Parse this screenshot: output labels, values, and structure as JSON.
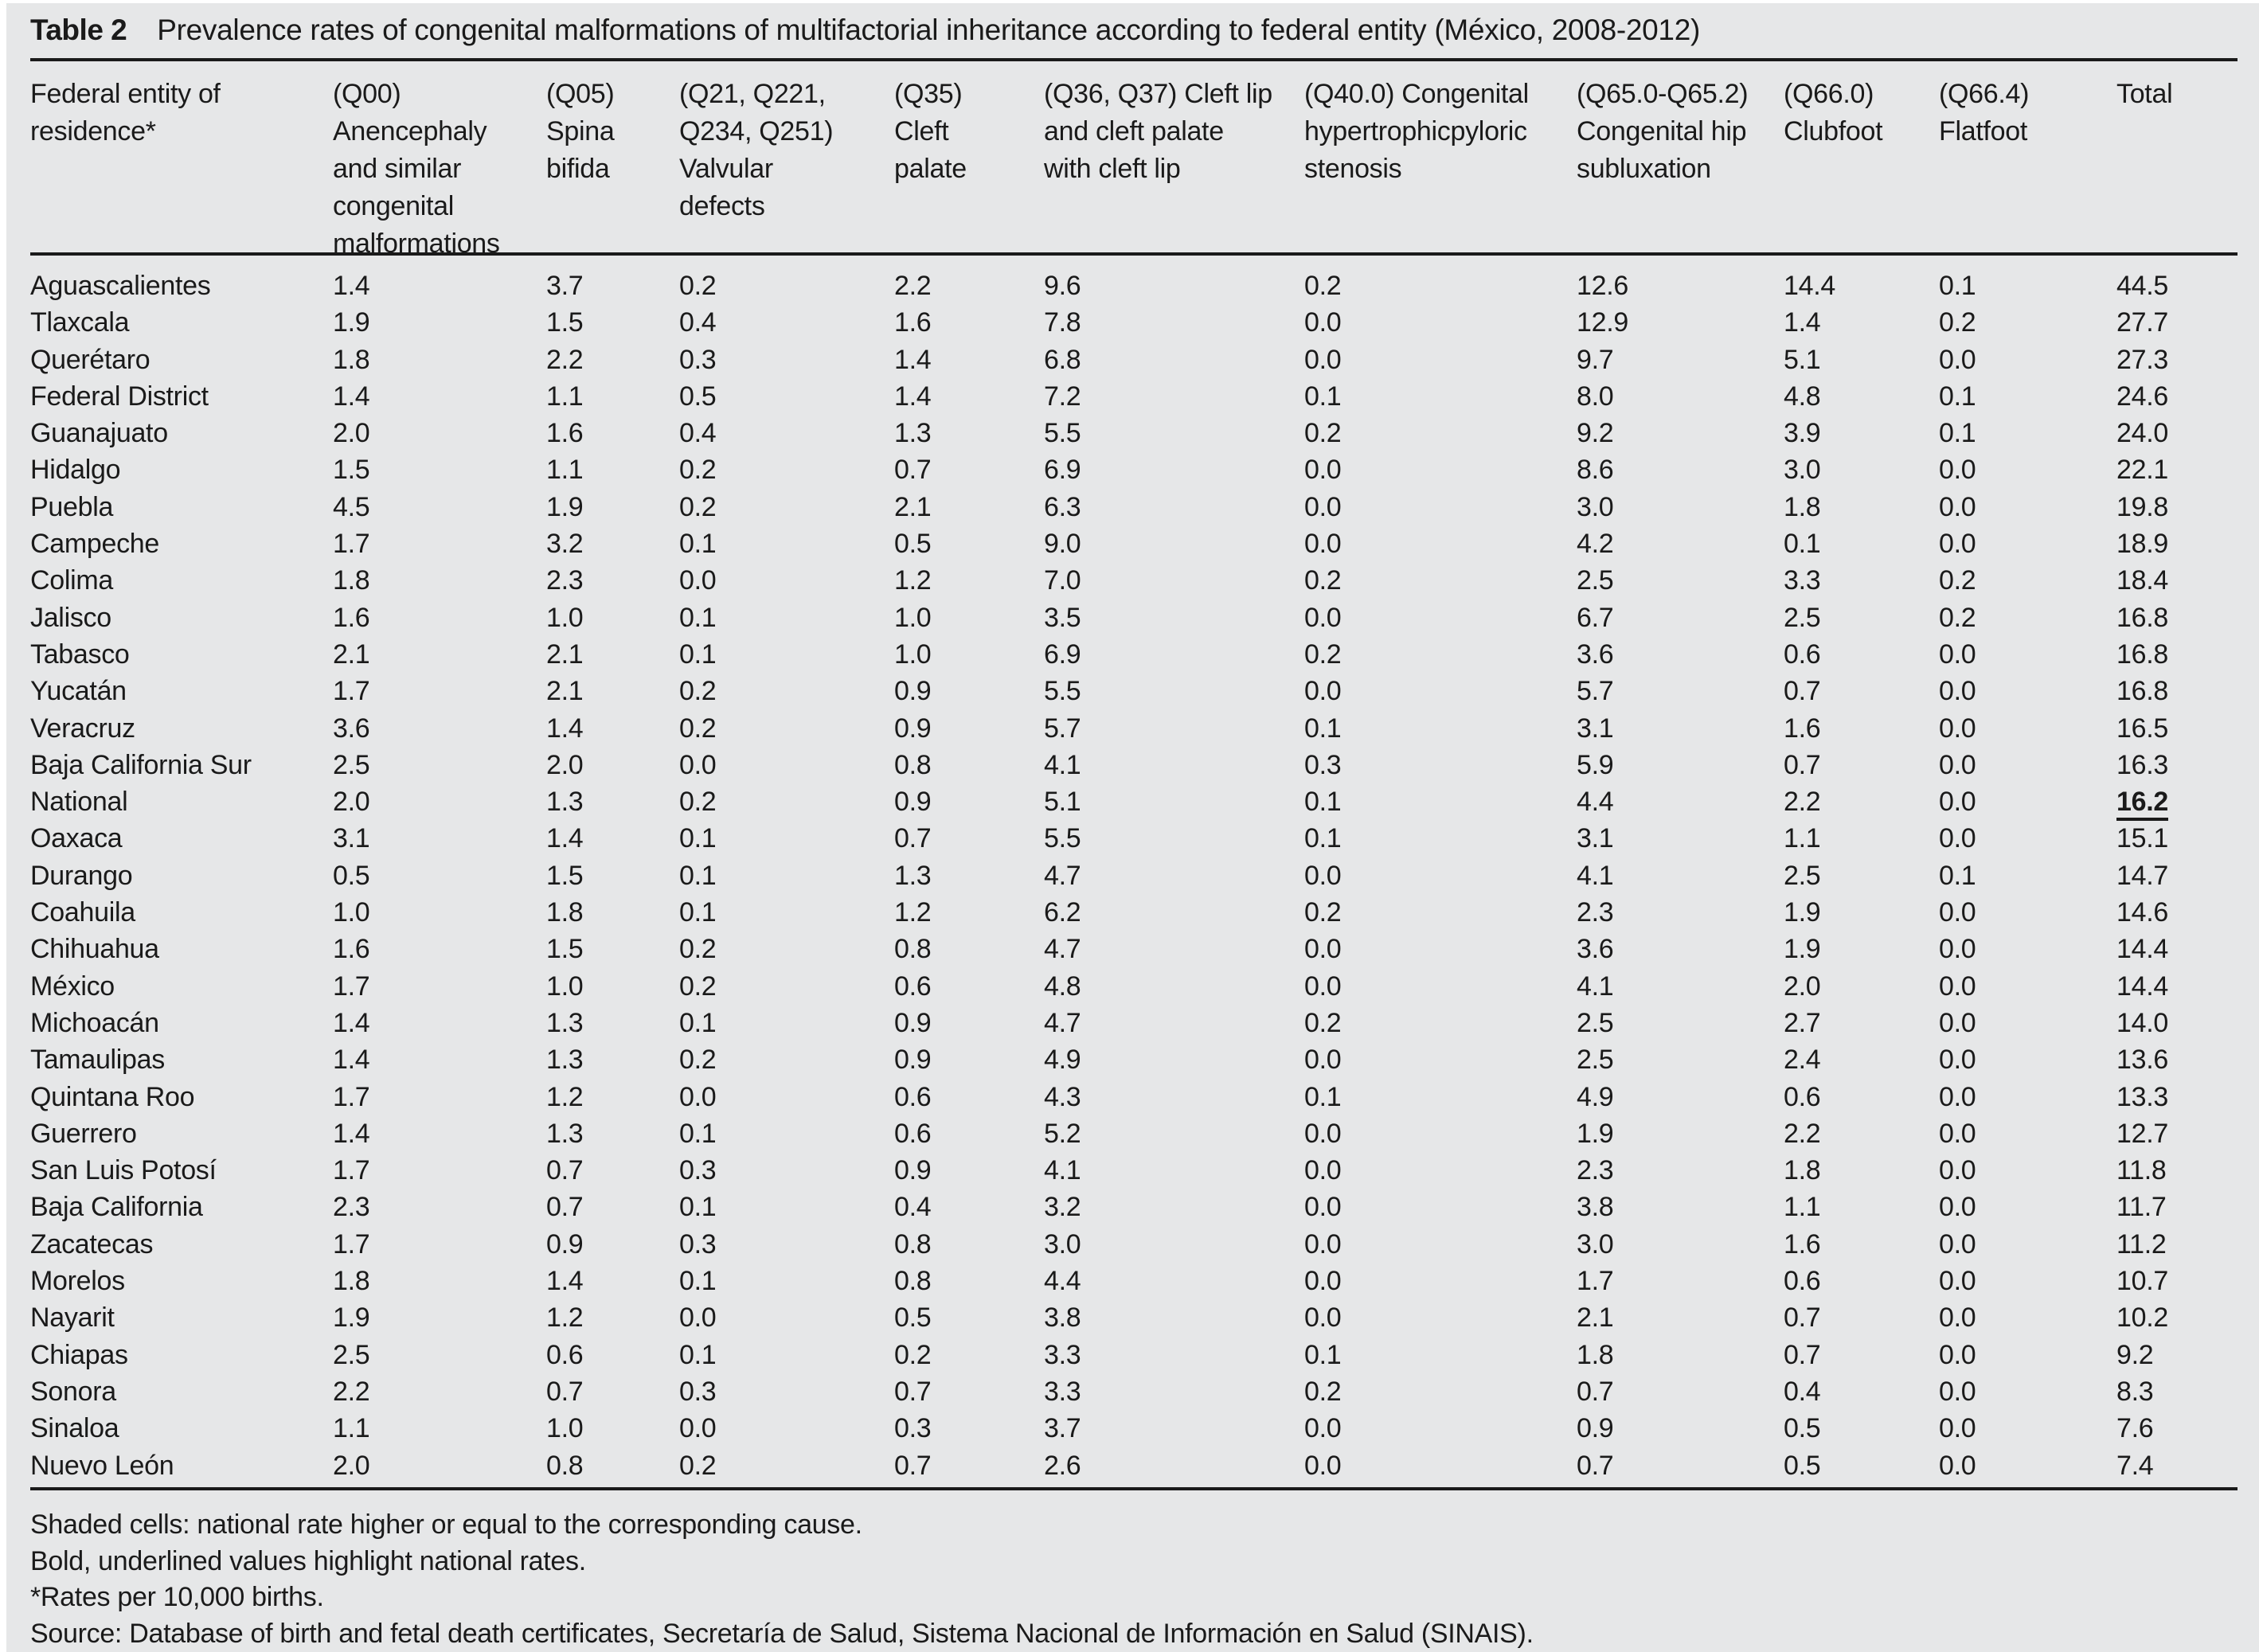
{
  "colors": {
    "panel_bg": "#e6e7e8",
    "text": "#1a1a1a",
    "rule": "#1a1a1a",
    "page_bg": "#ffffff"
  },
  "table": {
    "title_label": "Table 2",
    "title_text": "Prevalence rates of congenital malformations of multifactorial inheritance according to federal entity (México, 2008-2012)",
    "columns": [
      {
        "id": "entity",
        "lines": [
          "Federal entity of",
          "residence*"
        ]
      },
      {
        "id": "q00",
        "lines": [
          "(Q00)",
          "Anencephaly",
          "and similar",
          "congenital",
          "malformations"
        ]
      },
      {
        "id": "q05",
        "lines": [
          "(Q05)",
          "Spina",
          "bifida"
        ]
      },
      {
        "id": "q21",
        "lines": [
          "(Q21, Q221,",
          "Q234, Q251)",
          "Valvular",
          "defects"
        ]
      },
      {
        "id": "q35",
        "lines": [
          "(Q35)",
          "Cleft",
          "palate"
        ]
      },
      {
        "id": "q36_q37",
        "lines": [
          "(Q36, Q37) Cleft lip",
          "and cleft palate",
          "with cleft lip"
        ]
      },
      {
        "id": "q40",
        "lines": [
          "(Q40.0) Congenital",
          "hypertrophicpyloric",
          "stenosis"
        ]
      },
      {
        "id": "q65",
        "lines": [
          "(Q65.0-Q65.2)",
          "Congenital hip",
          "subluxation"
        ]
      },
      {
        "id": "q66_0",
        "lines": [
          "(Q66.0)",
          "Clubfoot"
        ]
      },
      {
        "id": "q66_4",
        "lines": [
          "(Q66.4)",
          "Flatfoot"
        ]
      },
      {
        "id": "total",
        "lines": [
          "Total"
        ]
      }
    ],
    "rows": [
      {
        "entity": "Aguascalientes",
        "values": [
          "1.4",
          "3.7",
          "0.2",
          "2.2",
          "9.6",
          "0.2",
          "12.6",
          "14.4",
          "0.1",
          "44.5"
        ]
      },
      {
        "entity": "Tlaxcala",
        "values": [
          "1.9",
          "1.5",
          "0.4",
          "1.6",
          "7.8",
          "0.0",
          "12.9",
          "1.4",
          "0.2",
          "27.7"
        ]
      },
      {
        "entity": "Querétaro",
        "values": [
          "1.8",
          "2.2",
          "0.3",
          "1.4",
          "6.8",
          "0.0",
          "9.7",
          "5.1",
          "0.0",
          "27.3"
        ]
      },
      {
        "entity": "Federal District",
        "values": [
          "1.4",
          "1.1",
          "0.5",
          "1.4",
          "7.2",
          "0.1",
          "8.0",
          "4.8",
          "0.1",
          "24.6"
        ]
      },
      {
        "entity": "Guanajuato",
        "values": [
          "2.0",
          "1.6",
          "0.4",
          "1.3",
          "5.5",
          "0.2",
          "9.2",
          "3.9",
          "0.1",
          "24.0"
        ]
      },
      {
        "entity": "Hidalgo",
        "values": [
          "1.5",
          "1.1",
          "0.2",
          "0.7",
          "6.9",
          "0.0",
          "8.6",
          "3.0",
          "0.0",
          "22.1"
        ]
      },
      {
        "entity": "Puebla",
        "values": [
          "4.5",
          "1.9",
          "0.2",
          "2.1",
          "6.3",
          "0.0",
          "3.0",
          "1.8",
          "0.0",
          "19.8"
        ]
      },
      {
        "entity": "Campeche",
        "values": [
          "1.7",
          "3.2",
          "0.1",
          "0.5",
          "9.0",
          "0.0",
          "4.2",
          "0.1",
          "0.0",
          "18.9"
        ]
      },
      {
        "entity": "Colima",
        "values": [
          "1.8",
          "2.3",
          "0.0",
          "1.2",
          "7.0",
          "0.2",
          "2.5",
          "3.3",
          "0.2",
          "18.4"
        ]
      },
      {
        "entity": "Jalisco",
        "values": [
          "1.6",
          "1.0",
          "0.1",
          "1.0",
          "3.5",
          "0.0",
          "6.7",
          "2.5",
          "0.2",
          "16.8"
        ]
      },
      {
        "entity": "Tabasco",
        "values": [
          "2.1",
          "2.1",
          "0.1",
          "1.0",
          "6.9",
          "0.2",
          "3.6",
          "0.6",
          "0.0",
          "16.8"
        ]
      },
      {
        "entity": "Yucatán",
        "values": [
          "1.7",
          "2.1",
          "0.2",
          "0.9",
          "5.5",
          "0.0",
          "5.7",
          "0.7",
          "0.0",
          "16.8"
        ]
      },
      {
        "entity": "Veracruz",
        "values": [
          "3.6",
          "1.4",
          "0.2",
          "0.9",
          "5.7",
          "0.1",
          "3.1",
          "1.6",
          "0.0",
          "16.5"
        ]
      },
      {
        "entity": "Baja California Sur",
        "values": [
          "2.5",
          "2.0",
          "0.0",
          "0.8",
          "4.1",
          "0.3",
          "5.9",
          "0.7",
          "0.0",
          "16.3"
        ]
      },
      {
        "entity": "National",
        "values": [
          "2.0",
          "1.3",
          "0.2",
          "0.9",
          "5.1",
          "0.1",
          "4.4",
          "2.2",
          "0.0",
          "16.2"
        ],
        "highlight_total": true
      },
      {
        "entity": "Oaxaca",
        "values": [
          "3.1",
          "1.4",
          "0.1",
          "0.7",
          "5.5",
          "0.1",
          "3.1",
          "1.1",
          "0.0",
          "15.1"
        ]
      },
      {
        "entity": "Durango",
        "values": [
          "0.5",
          "1.5",
          "0.1",
          "1.3",
          "4.7",
          "0.0",
          "4.1",
          "2.5",
          "0.1",
          "14.7"
        ]
      },
      {
        "entity": "Coahuila",
        "values": [
          "1.0",
          "1.8",
          "0.1",
          "1.2",
          "6.2",
          "0.2",
          "2.3",
          "1.9",
          "0.0",
          "14.6"
        ]
      },
      {
        "entity": "Chihuahua",
        "values": [
          "1.6",
          "1.5",
          "0.2",
          "0.8",
          "4.7",
          "0.0",
          "3.6",
          "1.9",
          "0.0",
          "14.4"
        ]
      },
      {
        "entity": "México",
        "values": [
          "1.7",
          "1.0",
          "0.2",
          "0.6",
          "4.8",
          "0.0",
          "4.1",
          "2.0",
          "0.0",
          "14.4"
        ]
      },
      {
        "entity": "Michoacán",
        "values": [
          "1.4",
          "1.3",
          "0.1",
          "0.9",
          "4.7",
          "0.2",
          "2.5",
          "2.7",
          "0.0",
          "14.0"
        ]
      },
      {
        "entity": "Tamaulipas",
        "values": [
          "1.4",
          "1.3",
          "0.2",
          "0.9",
          "4.9",
          "0.0",
          "2.5",
          "2.4",
          "0.0",
          "13.6"
        ]
      },
      {
        "entity": "Quintana Roo",
        "values": [
          "1.7",
          "1.2",
          "0.0",
          "0.6",
          "4.3",
          "0.1",
          "4.9",
          "0.6",
          "0.0",
          "13.3"
        ]
      },
      {
        "entity": "Guerrero",
        "values": [
          "1.4",
          "1.3",
          "0.1",
          "0.6",
          "5.2",
          "0.0",
          "1.9",
          "2.2",
          "0.0",
          "12.7"
        ]
      },
      {
        "entity": "San Luis Potosí",
        "values": [
          "1.7",
          "0.7",
          "0.3",
          "0.9",
          "4.1",
          "0.0",
          "2.3",
          "1.8",
          "0.0",
          "11.8"
        ]
      },
      {
        "entity": "Baja California",
        "values": [
          "2.3",
          "0.7",
          "0.1",
          "0.4",
          "3.2",
          "0.0",
          "3.8",
          "1.1",
          "0.0",
          "11.7"
        ]
      },
      {
        "entity": "Zacatecas",
        "values": [
          "1.7",
          "0.9",
          "0.3",
          "0.8",
          "3.0",
          "0.0",
          "3.0",
          "1.6",
          "0.0",
          "11.2"
        ]
      },
      {
        "entity": "Morelos",
        "values": [
          "1.8",
          "1.4",
          "0.1",
          "0.8",
          "4.4",
          "0.0",
          "1.7",
          "0.6",
          "0.0",
          "10.7"
        ]
      },
      {
        "entity": "Nayarit",
        "values": [
          "1.9",
          "1.2",
          "0.0",
          "0.5",
          "3.8",
          "0.0",
          "2.1",
          "0.7",
          "0.0",
          "10.2"
        ]
      },
      {
        "entity": "Chiapas",
        "values": [
          "2.5",
          "0.6",
          "0.1",
          "0.2",
          "3.3",
          "0.1",
          "1.8",
          "0.7",
          "0.0",
          "9.2"
        ]
      },
      {
        "entity": "Sonora",
        "values": [
          "2.2",
          "0.7",
          "0.3",
          "0.7",
          "3.3",
          "0.2",
          "0.7",
          "0.4",
          "0.0",
          "8.3"
        ]
      },
      {
        "entity": "Sinaloa",
        "values": [
          "1.1",
          "1.0",
          "0.0",
          "0.3",
          "3.7",
          "0.0",
          "0.9",
          "0.5",
          "0.0",
          "7.6"
        ]
      },
      {
        "entity": "Nuevo León",
        "values": [
          "2.0",
          "0.8",
          "0.2",
          "0.7",
          "2.6",
          "0.0",
          "0.7",
          "0.5",
          "0.0",
          "7.4"
        ]
      }
    ],
    "footnotes": [
      "Shaded cells: national rate higher or equal to the corresponding cause.",
      "Bold, underlined values highlight national rates.",
      "*Rates per 10,000 births.",
      "Source: Database of birth and fetal death certificates, Secretaría de Salud, Sistema Nacional de Información en Salud (SINAIS)."
    ]
  }
}
